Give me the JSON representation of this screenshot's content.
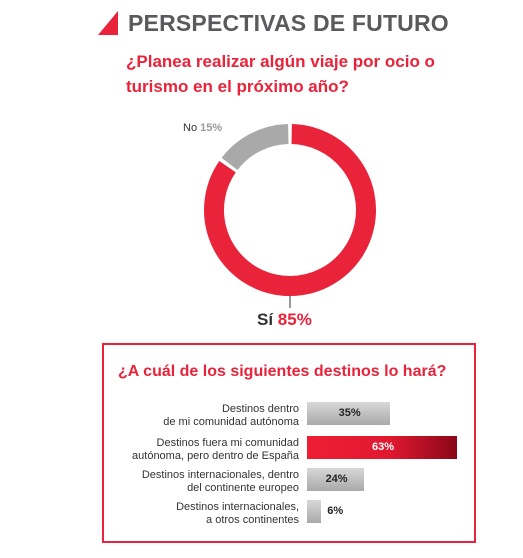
{
  "header": {
    "title": "PERSPECTIVAS DE FUTURO"
  },
  "questions": {
    "q1": "¿Planea realizar algún viaje por ocio o turismo en el próximo año?",
    "q2": "¿A cuál de los siguientes destinos lo hará?"
  },
  "colors": {
    "accent": "#e8233a",
    "grey": "#a9a9a9",
    "text": "#5a5a5c"
  },
  "chart_data": [
    {
      "type": "pie",
      "variant": "donut",
      "categories": [
        "No",
        "Sí"
      ],
      "values": [
        15,
        85
      ],
      "labels": [
        "15%",
        "85%"
      ],
      "colors": [
        "#a9a9a9",
        "#e8233a"
      ]
    },
    {
      "type": "bar",
      "orientation": "horizontal",
      "categories": [
        "Destinos dentro de mi comunidad autónoma",
        "Destinos fuera mi comunidad autónoma, pero dentro de España",
        "Destinos internacionales, dentro del continente europeo",
        "Destinos internacionales, a otros continentes"
      ],
      "values": [
        35,
        63,
        24,
        6
      ],
      "value_labels": [
        "35%",
        "63%",
        "24%",
        "6%"
      ],
      "highlight": [
        false,
        true,
        false,
        false
      ],
      "category_lines": [
        [
          "Destinos dentro",
          "de mi comunidad autónoma"
        ],
        [
          "Destinos fuera mi comunidad",
          "autónoma, pero dentro de España"
        ],
        [
          "Destinos internacionales, dentro",
          "del continente europeo"
        ],
        [
          "Destinos internacionales,",
          "a otros continentes"
        ]
      ]
    }
  ]
}
